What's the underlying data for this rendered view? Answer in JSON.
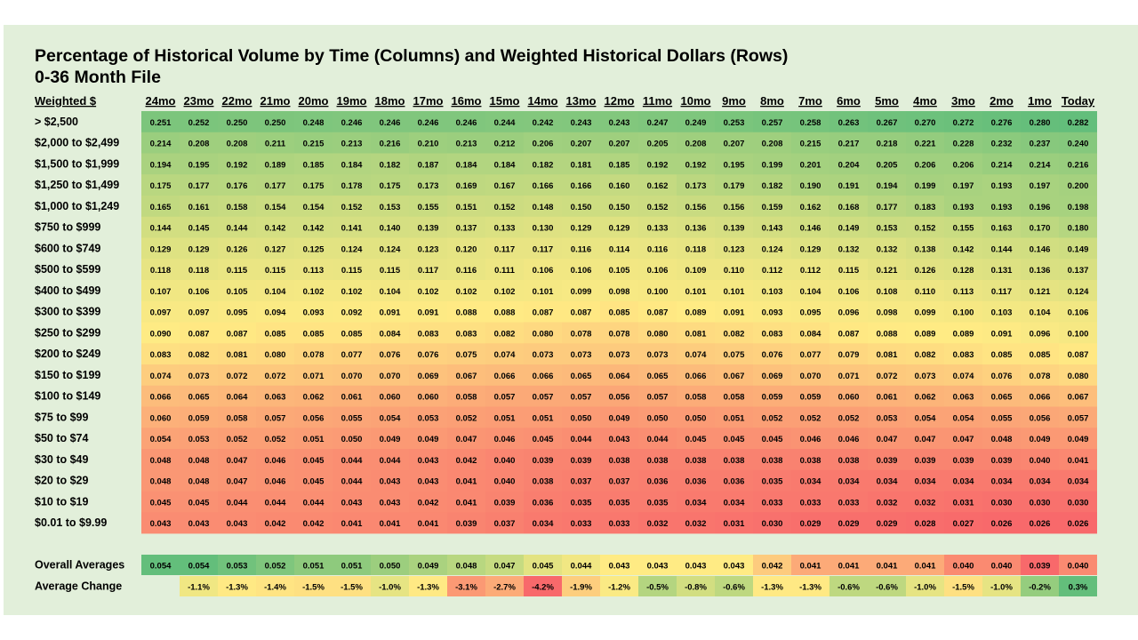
{
  "title": "Percentage of Historical Volume by Time (Columns) and Weighted Historical Dollars (Rows)",
  "subtitle": "0-36 Month File",
  "chart_data": {
    "type": "heatmap",
    "row_header": "Weighted $",
    "columns": [
      "24mo",
      "23mo",
      "22mo",
      "21mo",
      "20mo",
      "19mo",
      "18mo",
      "17mo",
      "16mo",
      "15mo",
      "14mo",
      "13mo",
      "12mo",
      "11mo",
      "10mo",
      "9mo",
      "8mo",
      "7mo",
      "6mo",
      "5mo",
      "4mo",
      "3mo",
      "2mo",
      "1mo",
      "Today"
    ],
    "rows": [
      {
        "label": "> $2,500",
        "values": [
          "0.251",
          "0.252",
          "0.250",
          "0.250",
          "0.248",
          "0.246",
          "0.246",
          "0.246",
          "0.246",
          "0.244",
          "0.242",
          "0.243",
          "0.243",
          "0.247",
          "0.249",
          "0.253",
          "0.257",
          "0.258",
          "0.263",
          "0.267",
          "0.270",
          "0.272",
          "0.276",
          "0.280",
          "0.282"
        ]
      },
      {
        "label": "$2,000 to $2,499",
        "values": [
          "0.214",
          "0.208",
          "0.208",
          "0.211",
          "0.215",
          "0.213",
          "0.216",
          "0.210",
          "0.213",
          "0.212",
          "0.206",
          "0.207",
          "0.207",
          "0.205",
          "0.208",
          "0.207",
          "0.208",
          "0.215",
          "0.217",
          "0.218",
          "0.221",
          "0.228",
          "0.232",
          "0.237",
          "0.240"
        ]
      },
      {
        "label": "$1,500 to $1,999",
        "values": [
          "0.194",
          "0.195",
          "0.192",
          "0.189",
          "0.185",
          "0.184",
          "0.182",
          "0.187",
          "0.184",
          "0.184",
          "0.182",
          "0.181",
          "0.185",
          "0.192",
          "0.192",
          "0.195",
          "0.199",
          "0.201",
          "0.204",
          "0.205",
          "0.206",
          "0.206",
          "0.214",
          "0.214",
          "0.216"
        ]
      },
      {
        "label": "$1,250 to $1,499",
        "values": [
          "0.175",
          "0.177",
          "0.176",
          "0.177",
          "0.175",
          "0.178",
          "0.175",
          "0.173",
          "0.169",
          "0.167",
          "0.166",
          "0.166",
          "0.160",
          "0.162",
          "0.173",
          "0.179",
          "0.182",
          "0.190",
          "0.191",
          "0.194",
          "0.199",
          "0.197",
          "0.193",
          "0.197",
          "0.200"
        ]
      },
      {
        "label": "$1,000 to $1,249",
        "values": [
          "0.165",
          "0.161",
          "0.158",
          "0.154",
          "0.154",
          "0.152",
          "0.153",
          "0.155",
          "0.151",
          "0.152",
          "0.148",
          "0.150",
          "0.150",
          "0.152",
          "0.156",
          "0.156",
          "0.159",
          "0.162",
          "0.168",
          "0.177",
          "0.183",
          "0.193",
          "0.193",
          "0.196",
          "0.198"
        ]
      },
      {
        "label": "$750 to $999",
        "values": [
          "0.144",
          "0.145",
          "0.144",
          "0.142",
          "0.142",
          "0.141",
          "0.140",
          "0.139",
          "0.137",
          "0.133",
          "0.130",
          "0.129",
          "0.129",
          "0.133",
          "0.136",
          "0.139",
          "0.143",
          "0.146",
          "0.149",
          "0.153",
          "0.152",
          "0.155",
          "0.163",
          "0.170",
          "0.180"
        ]
      },
      {
        "label": "$600 to $749",
        "values": [
          "0.129",
          "0.129",
          "0.126",
          "0.127",
          "0.125",
          "0.124",
          "0.124",
          "0.123",
          "0.120",
          "0.117",
          "0.117",
          "0.116",
          "0.114",
          "0.116",
          "0.118",
          "0.123",
          "0.124",
          "0.129",
          "0.132",
          "0.132",
          "0.138",
          "0.142",
          "0.144",
          "0.146",
          "0.149"
        ]
      },
      {
        "label": "$500 to $599",
        "values": [
          "0.118",
          "0.118",
          "0.115",
          "0.115",
          "0.113",
          "0.115",
          "0.115",
          "0.117",
          "0.116",
          "0.111",
          "0.106",
          "0.106",
          "0.105",
          "0.106",
          "0.109",
          "0.110",
          "0.112",
          "0.112",
          "0.115",
          "0.121",
          "0.126",
          "0.128",
          "0.131",
          "0.136",
          "0.137"
        ]
      },
      {
        "label": "$400 to $499",
        "values": [
          "0.107",
          "0.106",
          "0.105",
          "0.104",
          "0.102",
          "0.102",
          "0.104",
          "0.102",
          "0.102",
          "0.102",
          "0.101",
          "0.099",
          "0.098",
          "0.100",
          "0.101",
          "0.101",
          "0.103",
          "0.104",
          "0.106",
          "0.108",
          "0.110",
          "0.113",
          "0.117",
          "0.121",
          "0.124"
        ]
      },
      {
        "label": "$300 to $399",
        "values": [
          "0.097",
          "0.097",
          "0.095",
          "0.094",
          "0.093",
          "0.092",
          "0.091",
          "0.091",
          "0.088",
          "0.088",
          "0.087",
          "0.087",
          "0.085",
          "0.087",
          "0.089",
          "0.091",
          "0.093",
          "0.095",
          "0.096",
          "0.098",
          "0.099",
          "0.100",
          "0.103",
          "0.104",
          "0.106"
        ]
      },
      {
        "label": "$250 to $299",
        "values": [
          "0.090",
          "0.087",
          "0.087",
          "0.085",
          "0.085",
          "0.085",
          "0.084",
          "0.083",
          "0.083",
          "0.082",
          "0.080",
          "0.078",
          "0.078",
          "0.080",
          "0.081",
          "0.082",
          "0.083",
          "0.084",
          "0.087",
          "0.088",
          "0.089",
          "0.089",
          "0.091",
          "0.096",
          "0.100"
        ]
      },
      {
        "label": "$200 to $249",
        "values": [
          "0.083",
          "0.082",
          "0.081",
          "0.080",
          "0.078",
          "0.077",
          "0.076",
          "0.076",
          "0.075",
          "0.074",
          "0.073",
          "0.073",
          "0.073",
          "0.073",
          "0.074",
          "0.075",
          "0.076",
          "0.077",
          "0.079",
          "0.081",
          "0.082",
          "0.083",
          "0.085",
          "0.085",
          "0.087"
        ]
      },
      {
        "label": "$150 to $199",
        "values": [
          "0.074",
          "0.073",
          "0.072",
          "0.072",
          "0.071",
          "0.070",
          "0.070",
          "0.069",
          "0.067",
          "0.066",
          "0.066",
          "0.065",
          "0.064",
          "0.065",
          "0.066",
          "0.067",
          "0.069",
          "0.070",
          "0.071",
          "0.072",
          "0.073",
          "0.074",
          "0.076",
          "0.078",
          "0.080"
        ]
      },
      {
        "label": "$100 to $149",
        "values": [
          "0.066",
          "0.065",
          "0.064",
          "0.063",
          "0.062",
          "0.061",
          "0.060",
          "0.060",
          "0.058",
          "0.057",
          "0.057",
          "0.057",
          "0.056",
          "0.057",
          "0.058",
          "0.058",
          "0.059",
          "0.059",
          "0.060",
          "0.061",
          "0.062",
          "0.063",
          "0.065",
          "0.066",
          "0.067"
        ]
      },
      {
        "label": "$75 to $99",
        "values": [
          "0.060",
          "0.059",
          "0.058",
          "0.057",
          "0.056",
          "0.055",
          "0.054",
          "0.053",
          "0.052",
          "0.051",
          "0.051",
          "0.050",
          "0.049",
          "0.050",
          "0.050",
          "0.051",
          "0.052",
          "0.052",
          "0.052",
          "0.053",
          "0.054",
          "0.054",
          "0.055",
          "0.056",
          "0.057"
        ]
      },
      {
        "label": "$50 to $74",
        "values": [
          "0.054",
          "0.053",
          "0.052",
          "0.052",
          "0.051",
          "0.050",
          "0.049",
          "0.049",
          "0.047",
          "0.046",
          "0.045",
          "0.044",
          "0.043",
          "0.044",
          "0.045",
          "0.045",
          "0.045",
          "0.046",
          "0.046",
          "0.047",
          "0.047",
          "0.047",
          "0.048",
          "0.049",
          "0.049"
        ]
      },
      {
        "label": "$30 to $49",
        "values": [
          "0.048",
          "0.048",
          "0.047",
          "0.046",
          "0.045",
          "0.044",
          "0.044",
          "0.043",
          "0.042",
          "0.040",
          "0.039",
          "0.039",
          "0.038",
          "0.038",
          "0.038",
          "0.038",
          "0.038",
          "0.038",
          "0.038",
          "0.039",
          "0.039",
          "0.039",
          "0.039",
          "0.040",
          "0.041"
        ]
      },
      {
        "label": "$20 to $29",
        "values": [
          "0.048",
          "0.048",
          "0.047",
          "0.046",
          "0.045",
          "0.044",
          "0.043",
          "0.043",
          "0.041",
          "0.040",
          "0.038",
          "0.037",
          "0.037",
          "0.036",
          "0.036",
          "0.036",
          "0.035",
          "0.034",
          "0.034",
          "0.034",
          "0.034",
          "0.034",
          "0.034",
          "0.034",
          "0.034"
        ]
      },
      {
        "label": "$10 to $19",
        "values": [
          "0.045",
          "0.045",
          "0.044",
          "0.044",
          "0.044",
          "0.043",
          "0.043",
          "0.042",
          "0.041",
          "0.039",
          "0.036",
          "0.035",
          "0.035",
          "0.035",
          "0.034",
          "0.034",
          "0.033",
          "0.033",
          "0.033",
          "0.032",
          "0.032",
          "0.031",
          "0.030",
          "0.030",
          "0.030"
        ]
      },
      {
        "label": "$0.01 to $9.99",
        "values": [
          "0.043",
          "0.043",
          "0.043",
          "0.042",
          "0.042",
          "0.041",
          "0.041",
          "0.041",
          "0.039",
          "0.037",
          "0.034",
          "0.033",
          "0.033",
          "0.032",
          "0.032",
          "0.031",
          "0.030",
          "0.029",
          "0.029",
          "0.029",
          "0.028",
          "0.027",
          "0.026",
          "0.026",
          "0.026"
        ]
      }
    ],
    "overall_averages": {
      "label": "Overall Averages",
      "values": [
        "0.054",
        "0.054",
        "0.053",
        "0.052",
        "0.051",
        "0.051",
        "0.050",
        "0.049",
        "0.048",
        "0.047",
        "0.045",
        "0.044",
        "0.043",
        "0.043",
        "0.043",
        "0.043",
        "0.042",
        "0.041",
        "0.041",
        "0.041",
        "0.041",
        "0.040",
        "0.040",
        "0.039",
        "0.040"
      ]
    },
    "average_change": {
      "label": "Average Change",
      "values": [
        "",
        "-1.1%",
        "-1.3%",
        "-1.4%",
        "-1.5%",
        "-1.5%",
        "-1.0%",
        "-1.3%",
        "-3.1%",
        "-2.7%",
        "-4.2%",
        "-1.9%",
        "-1.2%",
        "-0.5%",
        "-0.8%",
        "-0.6%",
        "-1.3%",
        "-1.3%",
        "-0.6%",
        "-0.6%",
        "-1.0%",
        "-1.5%",
        "-1.0%",
        "-0.2%",
        "0.3%"
      ]
    },
    "colors": {
      "panel_background": "#e2efda",
      "scale_low": "#f8696b",
      "scale_mid": "#ffeb84",
      "scale_high": "#63be7b"
    }
  }
}
